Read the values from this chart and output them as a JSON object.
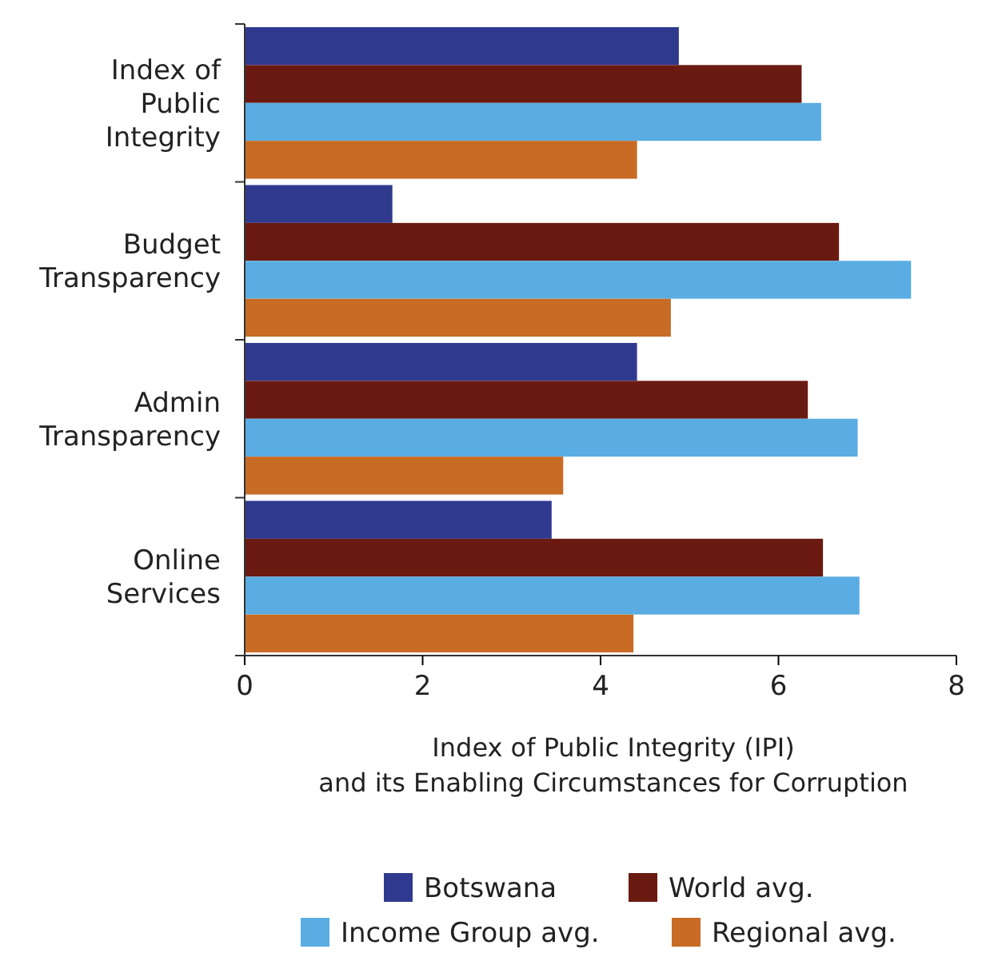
{
  "chart_data": {
    "type": "bar",
    "orientation": "horizontal",
    "xlabel": "Index of Public Integrity (IPI)\nand its Enabling Circumstances for Corruption",
    "categories": [
      "Index of\nPublic\nIntegrity",
      "Budget\nTransparency",
      "Admin\nTransparency",
      "Online\nServices"
    ],
    "series": [
      {
        "name": "Botswana",
        "color": "#2f3a8f",
        "values": [
          4.88,
          1.66,
          4.41,
          3.45
        ]
      },
      {
        "name": "World avg.",
        "color": "#6b1a12",
        "values": [
          6.26,
          6.68,
          6.33,
          6.5
        ]
      },
      {
        "name": "Income Group avg.",
        "color": "#5aade2",
        "values": [
          6.48,
          7.49,
          6.89,
          6.91
        ]
      },
      {
        "name": "Regional avg.",
        "color": "#c76b25",
        "values": [
          4.41,
          4.79,
          3.58,
          4.37
        ]
      }
    ],
    "xlim": [
      0,
      8
    ],
    "xticks": [
      0,
      2,
      4,
      6,
      8
    ],
    "grid": false,
    "legend": "bottom"
  }
}
